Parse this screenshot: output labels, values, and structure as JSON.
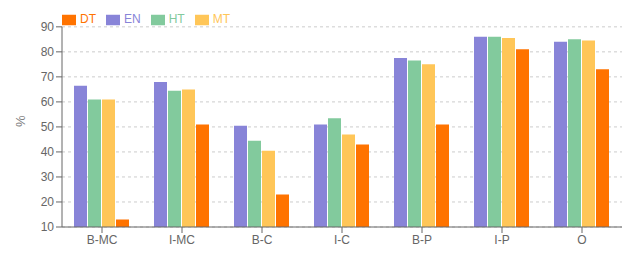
{
  "chart_data": {
    "type": "bar",
    "ylabel": "%",
    "categories": [
      "B-MC",
      "I-MC",
      "B-C",
      "I-C",
      "B-P",
      "I-P",
      "O"
    ],
    "series": [
      {
        "name": "EN",
        "color": "#8884d8",
        "values": [
          66.5,
          68.0,
          50.5,
          51.0,
          77.5,
          86.0,
          84.0
        ]
      },
      {
        "name": "HT",
        "color": "#82ca9d",
        "values": [
          61.0,
          64.5,
          44.5,
          53.5,
          76.5,
          86.0,
          85.0
        ]
      },
      {
        "name": "MT",
        "color": "#ffc658",
        "values": [
          61.0,
          65.0,
          40.5,
          47.0,
          75.0,
          85.5,
          84.5
        ]
      },
      {
        "name": "DT",
        "color": "#ff7300",
        "values": [
          13.0,
          51.0,
          23.0,
          43.0,
          51.0,
          81.0,
          73.0
        ]
      }
    ],
    "ylim": [
      10,
      90
    ],
    "yticks": [
      10,
      20,
      30,
      40,
      50,
      60,
      70,
      80,
      90
    ],
    "grid": true,
    "legend": "upper left"
  }
}
